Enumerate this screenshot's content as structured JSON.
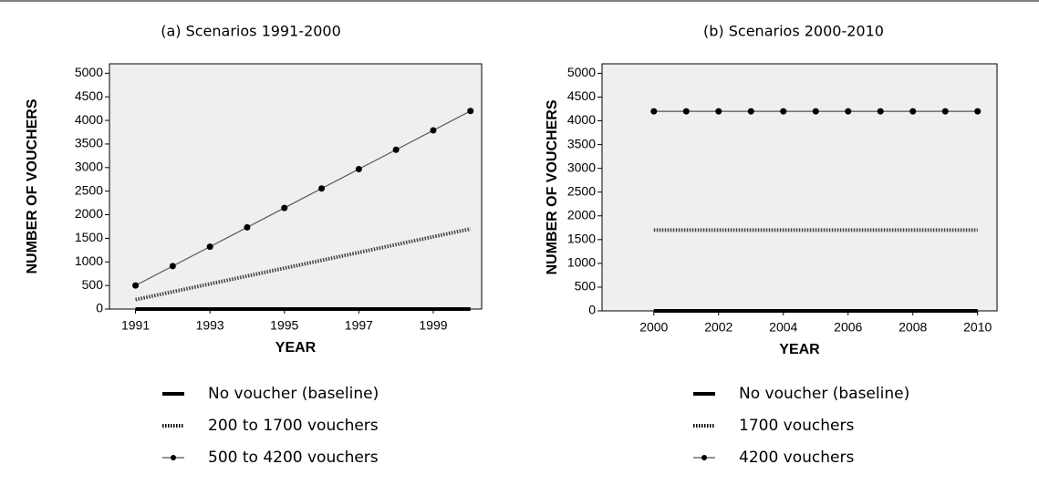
{
  "chart_data": [
    {
      "type": "line",
      "title": "(a) Scenarios 1991-2000",
      "x_label": "YEAR",
      "y_label": "NUMBER OF VOUCHERS",
      "x": [
        1991,
        1992,
        1993,
        1994,
        1995,
        1996,
        1997,
        1998,
        1999,
        2000
      ],
      "xlim": [
        1990.3,
        2000.3
      ],
      "xticks": [
        1991,
        1993,
        1995,
        1997,
        1999
      ],
      "ylim": [
        0,
        5200
      ],
      "yticks": [
        0,
        500,
        1000,
        1500,
        2000,
        2500,
        3000,
        3500,
        4000,
        4500,
        5000
      ],
      "series": [
        {
          "name": "No voucher (baseline)",
          "color": "#000000",
          "style": "thick",
          "values": [
            0,
            0,
            0,
            0,
            0,
            0,
            0,
            0,
            0,
            0
          ]
        },
        {
          "name": "200 to 1700 vouchers",
          "color": "#444444",
          "style": "dotted",
          "values": [
            200,
            367,
            533,
            700,
            867,
            1033,
            1200,
            1367,
            1533,
            1700
          ]
        },
        {
          "name": "500 to 4200 vouchers",
          "color": "#555555",
          "style": "line-marker",
          "values": [
            500,
            911,
            1322,
            1733,
            2144,
            2556,
            2967,
            3378,
            3789,
            4200
          ]
        }
      ]
    },
    {
      "type": "line",
      "title": "(b) Scenarios 2000-2010",
      "x_label": "YEAR",
      "y_label": "NUMBER OF VOUCHERS",
      "x": [
        2000,
        2001,
        2002,
        2003,
        2004,
        2005,
        2006,
        2007,
        2008,
        2009,
        2010
      ],
      "xlim": [
        1998.4,
        2010.6
      ],
      "xticks": [
        2000,
        2002,
        2004,
        2006,
        2008,
        2010
      ],
      "ylim": [
        0,
        5200
      ],
      "yticks": [
        0,
        500,
        1000,
        1500,
        2000,
        2500,
        3000,
        3500,
        4000,
        4500,
        5000
      ],
      "series": [
        {
          "name": "No voucher (baseline)",
          "color": "#000000",
          "style": "thick",
          "values": [
            0,
            0,
            0,
            0,
            0,
            0,
            0,
            0,
            0,
            0,
            0
          ]
        },
        {
          "name": "1700 vouchers",
          "color": "#444444",
          "style": "dotted",
          "values": [
            1700,
            1700,
            1700,
            1700,
            1700,
            1700,
            1700,
            1700,
            1700,
            1700,
            1700
          ]
        },
        {
          "name": "4200 vouchers",
          "color": "#555555",
          "style": "line-marker",
          "values": [
            4200,
            4200,
            4200,
            4200,
            4200,
            4200,
            4200,
            4200,
            4200,
            4200,
            4200
          ]
        }
      ]
    }
  ]
}
